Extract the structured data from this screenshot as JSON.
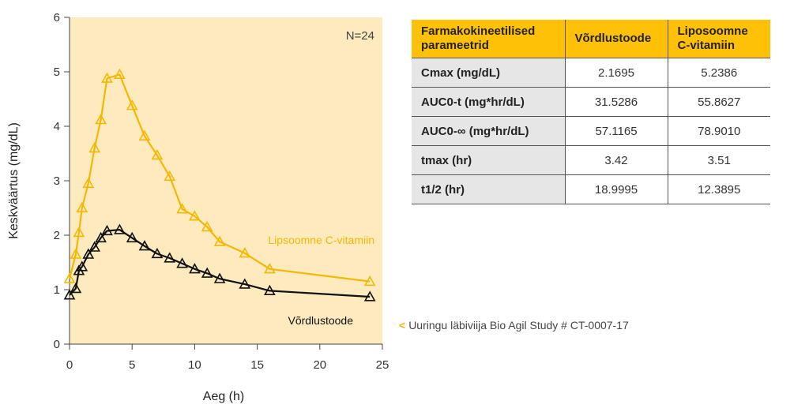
{
  "chart_data": {
    "type": "line",
    "xlabel": "Aeg (h)",
    "ylabel": "Keskväärtus (mg/dL)",
    "xlim": [
      0,
      25
    ],
    "ylim": [
      0,
      6
    ],
    "xticks": [
      "0",
      "5",
      "10",
      "15",
      "20",
      "25"
    ],
    "yticks": [
      "0",
      "1",
      "2",
      "3",
      "4",
      "5",
      "6"
    ],
    "annotation": "N=24",
    "marker": "triangle",
    "series": [
      {
        "name": "Lipsoomne C-vitamiin",
        "color": "#F5B800",
        "x": [
          0,
          0.5,
          0.75,
          1,
          1.5,
          2,
          2.5,
          3,
          4,
          5,
          6,
          7,
          8,
          9,
          10,
          11,
          12,
          14,
          16,
          24
        ],
        "y": [
          1.2,
          1.65,
          2.05,
          2.5,
          2.95,
          3.6,
          4.12,
          4.88,
          4.95,
          4.38,
          3.82,
          3.47,
          3.08,
          2.48,
          2.35,
          2.15,
          1.88,
          1.67,
          1.38,
          1.15
        ]
      },
      {
        "name": "Võrdlustoode",
        "color": "#111111",
        "x": [
          0,
          0.5,
          0.75,
          1,
          1.5,
          2,
          2.5,
          3,
          4,
          5,
          6,
          7,
          8,
          9,
          10,
          11,
          12,
          14,
          16,
          24
        ],
        "y": [
          0.9,
          1.02,
          1.35,
          1.42,
          1.65,
          1.78,
          1.95,
          2.08,
          2.1,
          1.95,
          1.8,
          1.66,
          1.58,
          1.48,
          1.38,
          1.3,
          1.2,
          1.1,
          0.98,
          0.87
        ]
      }
    ]
  },
  "source_note": {
    "glyph": "<",
    "text": "Uuringu läbiviija Bio Agil Study # CT-0007-17",
    "color": "#F5B800"
  },
  "table": {
    "headers": [
      "Farmakokineetilised parameetrid",
      "Võrdlustoode",
      "Liposoomne C-vitamiin"
    ],
    "rows": [
      [
        "Cmax (mg/dL)",
        "2.1695",
        "5.2386"
      ],
      [
        "AUC0-t (mg*hr/dL)",
        "31.5286",
        "55.8627"
      ],
      [
        "AUC0-∞ (mg*hr/dL)",
        "57.1165",
        "78.9010"
      ],
      [
        "tmax (hr)",
        "3.42",
        "3.51"
      ],
      [
        "t1/2 (hr)",
        "18.9995",
        "12.3895"
      ]
    ]
  }
}
